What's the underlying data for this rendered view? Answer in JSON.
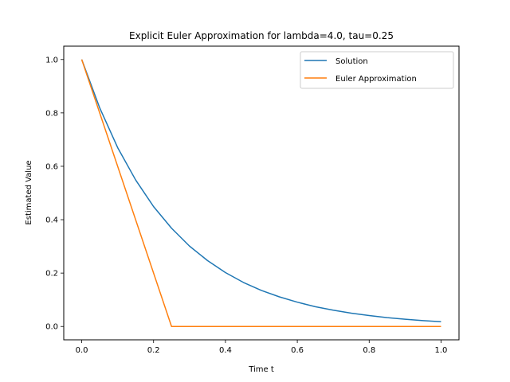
{
  "chart_data": {
    "type": "line",
    "title": "Explicit Euler Approximation for lambda=4.0, tau=0.25",
    "xlabel": "Time t",
    "ylabel": "Estimated Value",
    "xlim": [
      -0.05,
      1.05
    ],
    "ylim": [
      -0.05,
      1.05
    ],
    "xticks": [
      "0.0",
      "0.2",
      "0.4",
      "0.6",
      "0.8",
      "1.0"
    ],
    "yticks": [
      "0.0",
      "0.2",
      "0.4",
      "0.6",
      "0.8",
      "1.0"
    ],
    "grid": false,
    "legend_position": "top-right",
    "series": [
      {
        "name": "Solution",
        "color": "#1f77b4",
        "x": [
          0.0,
          0.05,
          0.1,
          0.15,
          0.2,
          0.25,
          0.3,
          0.35,
          0.4,
          0.45,
          0.5,
          0.55,
          0.6,
          0.65,
          0.7,
          0.75,
          0.8,
          0.85,
          0.9,
          0.95,
          1.0
        ],
        "y": [
          1.0,
          0.819,
          0.67,
          0.549,
          0.449,
          0.368,
          0.301,
          0.247,
          0.202,
          0.165,
          0.135,
          0.111,
          0.091,
          0.074,
          0.061,
          0.05,
          0.041,
          0.033,
          0.027,
          0.022,
          0.018
        ]
      },
      {
        "name": "Euler Approximation",
        "color": "#ff7f0e",
        "x": [
          0.0,
          0.25,
          0.5,
          0.75,
          1.0
        ],
        "y": [
          1.0,
          0.0,
          0.0,
          0.0,
          0.0
        ]
      }
    ]
  }
}
